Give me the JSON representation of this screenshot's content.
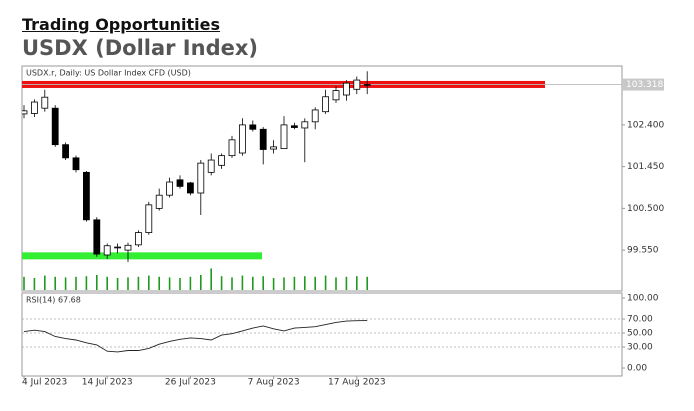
{
  "header": {
    "kicker": "Trading Opportunities",
    "title": "USDX (Dollar Index)"
  },
  "chart_data": [
    {
      "type": "candlestick",
      "label": "USDX.r, Daily:  US Dollar Index CFD (USD)",
      "categories": [
        "4 Jul 2023",
        null,
        null,
        null,
        null,
        null,
        null,
        null,
        "14 Jul 2023",
        null,
        null,
        null,
        null,
        null,
        null,
        null,
        "26 Jul 2023",
        null,
        null,
        null,
        null,
        null,
        null,
        null,
        "7 Aug 2023",
        null,
        null,
        null,
        null,
        null,
        null,
        null,
        "17 Aug 2023",
        null
      ],
      "open": [
        102.65,
        102.66,
        102.78,
        102.78,
        101.95,
        101.65,
        101.32,
        100.24,
        99.44,
        99.6,
        99.55,
        99.67,
        99.95,
        100.5,
        100.8,
        101.15,
        101.08,
        100.85,
        101.32,
        101.48,
        101.7,
        101.76,
        102.4,
        102.3,
        101.85,
        101.86,
        102.38,
        102.33,
        102.47,
        102.7,
        102.97,
        103.08,
        103.21,
        103.3
      ],
      "high": [
        102.85,
        102.98,
        103.2,
        102.85,
        102.0,
        101.7,
        101.35,
        100.3,
        99.7,
        99.7,
        99.72,
        100.0,
        100.65,
        100.95,
        101.2,
        101.25,
        101.1,
        101.6,
        101.75,
        101.75,
        102.15,
        102.55,
        102.5,
        102.35,
        102.05,
        102.6,
        102.45,
        102.55,
        102.8,
        103.2,
        103.28,
        103.42,
        103.5,
        103.62
      ],
      "low": [
        102.55,
        102.58,
        102.7,
        101.9,
        101.6,
        101.32,
        100.2,
        99.4,
        99.35,
        99.48,
        99.28,
        99.62,
        99.9,
        100.45,
        100.75,
        100.95,
        100.8,
        100.35,
        101.25,
        101.4,
        101.65,
        101.7,
        102.25,
        101.5,
        101.75,
        101.85,
        102.3,
        101.55,
        102.3,
        102.65,
        102.9,
        102.95,
        103.1,
        103.1
      ],
      "close": [
        102.72,
        102.92,
        103.03,
        101.95,
        101.65,
        101.38,
        100.24,
        99.46,
        99.65,
        99.62,
        99.66,
        99.95,
        100.58,
        100.8,
        101.1,
        101.0,
        100.85,
        101.53,
        101.6,
        101.7,
        102.06,
        102.4,
        102.3,
        101.84,
        101.9,
        102.4,
        102.34,
        102.47,
        102.74,
        103.04,
        103.18,
        103.35,
        103.42,
        103.318
      ],
      "up_color": "#ffffff",
      "down_color": "#000000",
      "volume": [
        22,
        20,
        24,
        22,
        21,
        22,
        23,
        25,
        22,
        20,
        21,
        22,
        24,
        22,
        21,
        20,
        22,
        25,
        36,
        23,
        21,
        24,
        22,
        23,
        20,
        21,
        22,
        23,
        22,
        24,
        21,
        22,
        23,
        22
      ],
      "volume_ylim": [
        0,
        100
      ],
      "volume_color": "#1f9a1f",
      "ylim": [
        98.62,
        103.74
      ],
      "yticks": [
        {
          "value": 102.4,
          "label": "102.400"
        },
        {
          "value": 101.45,
          "label": "101.450"
        },
        {
          "value": 100.5,
          "label": "100.500"
        },
        {
          "value": 99.55,
          "label": "99.550"
        }
      ],
      "last_price": {
        "value": 103.318,
        "label": "103.318"
      },
      "levels": [
        {
          "value": 103.32,
          "color": "#ee1111"
        },
        {
          "value": 99.42,
          "color": "#33ee33"
        }
      ]
    },
    {
      "type": "line",
      "label": "RSI(14) 67.68",
      "values": [
        52,
        54,
        52,
        45,
        42,
        40,
        36,
        33,
        24,
        23,
        25,
        25,
        28,
        34,
        38,
        41,
        43,
        42,
        40,
        47,
        49,
        53,
        57,
        60,
        56,
        53,
        57,
        58,
        59,
        62,
        65,
        67,
        67.5,
        67.68
      ],
      "color": "#222222",
      "ylim": [
        -11.4,
        107.1
      ],
      "yticks": [
        {
          "value": 100,
          "label": "100.00"
        },
        {
          "value": 70,
          "label": "70.00"
        },
        {
          "value": 50,
          "label": "50.00"
        },
        {
          "value": 30,
          "label": "30.00"
        },
        {
          "value": 0,
          "label": "0.00"
        }
      ],
      "grid_values": [
        70,
        50,
        30
      ]
    }
  ]
}
